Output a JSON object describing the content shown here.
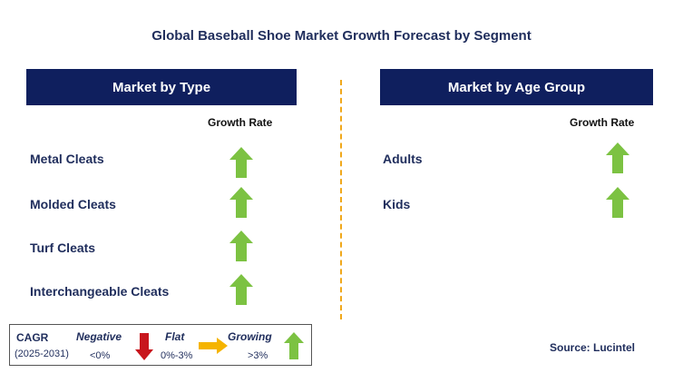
{
  "title": "Global Baseball Shoe Market Growth Forecast by Segment",
  "left_panel": {
    "header": "Market by Type",
    "growth_label": "Growth Rate",
    "items": [
      {
        "label": "Metal Cleats",
        "trend": "growing"
      },
      {
        "label": "Molded Cleats",
        "trend": "growing"
      },
      {
        "label": "Turf Cleats",
        "trend": "growing"
      },
      {
        "label": "Interchangeable Cleats",
        "trend": "growing"
      }
    ]
  },
  "right_panel": {
    "header": "Market by Age Group",
    "growth_label": "Growth Rate",
    "items": [
      {
        "label": "Adults",
        "trend": "growing"
      },
      {
        "label": "Kids",
        "trend": "growing"
      }
    ]
  },
  "legend": {
    "cagr_label": "CAGR",
    "period": "(2025-2031)",
    "negative": {
      "label": "Negative",
      "value": "<0%"
    },
    "flat": {
      "label": "Flat",
      "value": "0%-3%"
    },
    "growing": {
      "label": "Growing",
      "value": ">3%"
    }
  },
  "source": "Source: Lucintel",
  "colors": {
    "header_bg": "#0f1f5e",
    "text": "#1f2d5c",
    "growing": "#7cc242",
    "negative": "#c8161d",
    "flat": "#f5b400",
    "divider": "#f0a81c"
  }
}
